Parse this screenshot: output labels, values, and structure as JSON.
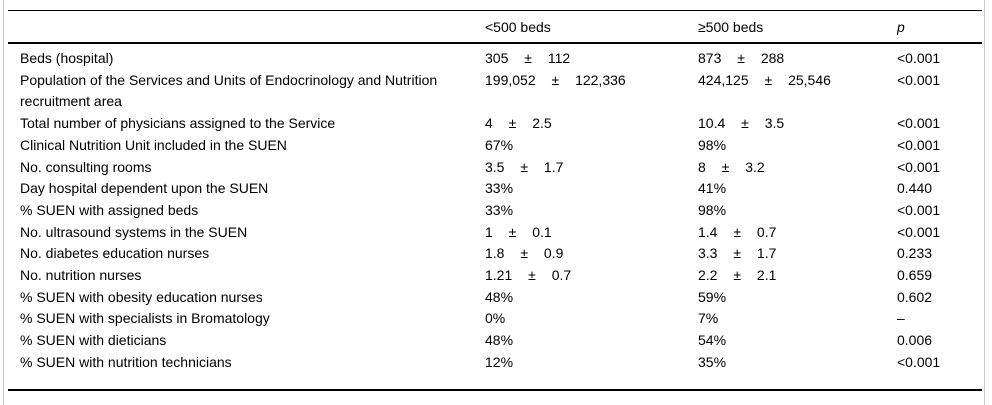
{
  "table": {
    "columns": [
      "",
      "<500 beds",
      "≥500 beds",
      "p"
    ],
    "rows": [
      {
        "label": "Beds (hospital)",
        "lt500": "305 ± 112",
        "ge500": "873 ± 288",
        "p": "<0.001"
      },
      {
        "label": "Population of the Services and Units of Endocrinology and Nutrition recruitment area",
        "lt500": "199,052 ± 122,336",
        "ge500": "424,125 ± 25,546",
        "p": "<0.001"
      },
      {
        "label": "Total number of physicians assigned to the Service",
        "lt500": "4 ± 2.5",
        "ge500": "10.4 ± 3.5",
        "p": "<0.001"
      },
      {
        "label": "Clinical Nutrition Unit included in the SUEN",
        "lt500": "67%",
        "ge500": "98%",
        "p": "<0.001"
      },
      {
        "label": "No. consulting rooms",
        "lt500": "3.5 ± 1.7",
        "ge500": "8 ± 3.2",
        "p": "<0.001"
      },
      {
        "label": "Day hospital dependent upon the SUEN",
        "lt500": "33%",
        "ge500": "41%",
        "p": "0.440"
      },
      {
        "label": "% SUEN with assigned beds",
        "lt500": "33%",
        "ge500": "98%",
        "p": "<0.001"
      },
      {
        "label": "No. ultrasound systems in the SUEN",
        "lt500": "1 ± 0.1",
        "ge500": "1.4 ± 0.7",
        "p": "<0.001"
      },
      {
        "label": "No. diabetes education nurses",
        "lt500": "1.8 ± 0.9",
        "ge500": "3.3 ± 1.7",
        "p": "0.233"
      },
      {
        "label": "No. nutrition nurses",
        "lt500": "1.21 ± 0.7",
        "ge500": "2.2 ± 2.1",
        "p": "0.659"
      },
      {
        "label": "% SUEN with obesity education nurses",
        "lt500": "48%",
        "ge500": "59%",
        "p": "0.602"
      },
      {
        "label": "% SUEN with specialists in Bromatology",
        "lt500": "0%",
        "ge500": "7%",
        "p": "–"
      },
      {
        "label": "% SUEN with dieticians",
        "lt500": "48%",
        "ge500": "54%",
        "p": "0.006"
      },
      {
        "label": "% SUEN with nutrition technicians",
        "lt500": "12%",
        "ge500": "35%",
        "p": "<0.001"
      }
    ]
  },
  "colors": {
    "rule": "#000000",
    "text": "#000000",
    "frame_border": "#c9c9c9",
    "background": "#ffffff"
  }
}
